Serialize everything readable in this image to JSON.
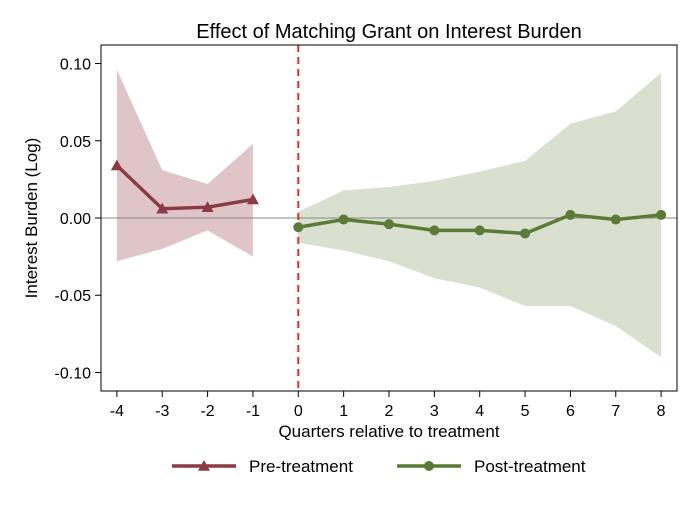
{
  "chart_data": {
    "type": "line",
    "title": "Effect of Matching Grant on Interest Burden",
    "xlabel": "Quarters relative to treatment",
    "ylabel": "Interest Burden (Log)",
    "xlim": [
      -4.35,
      8.35
    ],
    "ylim": [
      -0.112,
      0.112
    ],
    "x_ticks": [
      -4,
      -3,
      -2,
      -1,
      0,
      1,
      2,
      3,
      4,
      5,
      6,
      7,
      8
    ],
    "x_tick_labels": [
      "-4",
      "-3",
      "-2",
      "-1",
      "0",
      "1",
      "2",
      "3",
      "4",
      "5",
      "6",
      "7",
      "8"
    ],
    "y_ticks": [
      0.1,
      0.05,
      0.0,
      -0.05,
      -0.1
    ],
    "y_tick_labels": [
      "0.10",
      "0.05",
      "0.00",
      "-0.05",
      "-0.10"
    ],
    "reference_lines": {
      "vertical_x": 0,
      "horizontal_y": 0
    },
    "legend_position": "bottom",
    "series": [
      {
        "name": "Pre-treatment",
        "color": "#8b3a46",
        "band_color": "#dfc5c8",
        "marker": "triangle",
        "x": [
          -4,
          -3,
          -2,
          -1
        ],
        "y": [
          0.034,
          0.006,
          0.007,
          0.012
        ],
        "ci_lower": [
          -0.028,
          -0.02,
          -0.008,
          -0.025
        ],
        "ci_upper": [
          0.096,
          0.031,
          0.022,
          0.048
        ]
      },
      {
        "name": "Post-treatment",
        "color": "#5a7a35",
        "band_color": "#d9e0cf",
        "marker": "circle",
        "x": [
          0,
          1,
          2,
          3,
          4,
          5,
          6,
          7,
          8
        ],
        "y": [
          -0.006,
          -0.001,
          -0.004,
          -0.008,
          -0.008,
          -0.01,
          0.002,
          -0.001,
          0.002
        ],
        "ci_lower": [
          -0.016,
          -0.021,
          -0.028,
          -0.039,
          -0.045,
          -0.057,
          -0.057,
          -0.07,
          -0.09
        ],
        "ci_upper": [
          0.004,
          0.018,
          0.02,
          0.024,
          0.03,
          0.037,
          0.061,
          0.069,
          0.094
        ]
      }
    ]
  }
}
